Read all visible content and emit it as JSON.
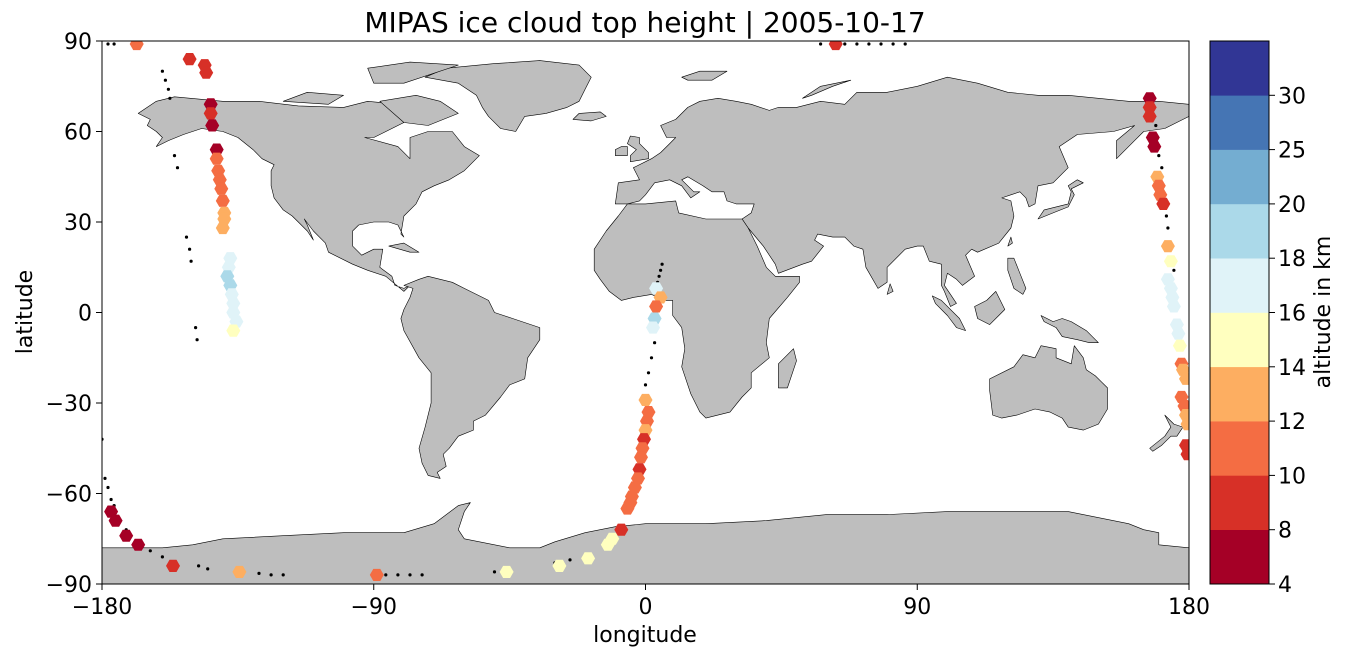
{
  "chart_data": {
    "type": "scatter",
    "title": "MIPAS ice cloud top height | 2005-10-17",
    "xlabel": "longitude",
    "ylabel": "latitude",
    "xlim": [
      -180,
      180
    ],
    "ylim": [
      -90,
      90
    ],
    "x_ticks": [
      -180,
      -90,
      0,
      90,
      180
    ],
    "y_ticks": [
      -90,
      -60,
      -30,
      0,
      30,
      60,
      90
    ],
    "x_tick_labels": [
      "−180",
      "−90",
      "0",
      "90",
      "180"
    ],
    "y_tick_labels": [
      "−90",
      "−60",
      "−30",
      "0",
      "30",
      "60",
      "90"
    ],
    "map_background": "world coastlines, land filled gray",
    "land_color": "#bebebe",
    "ocean_color": "#ffffff",
    "colorbar": {
      "label": "altitude in km",
      "levels": [
        4,
        8,
        10,
        12,
        14,
        16,
        18,
        20,
        25,
        30
      ],
      "level_labels": [
        "4",
        "8",
        "10",
        "12",
        "14",
        "16",
        "18",
        "20",
        "25",
        "30"
      ],
      "colors": [
        "#a50026",
        "#d73027",
        "#f46d43",
        "#fdae61",
        "#ffffbf",
        "#e0f3f8",
        "#abd9e9",
        "#74add1",
        "#4575b4",
        "#313695"
      ]
    },
    "track_points": [
      [
        -178,
        89
      ],
      [
        -176,
        89
      ],
      [
        -160,
        80
      ],
      [
        -159,
        77
      ],
      [
        -158,
        74
      ],
      [
        -157.5,
        71
      ],
      [
        -156,
        52
      ],
      [
        -155,
        48
      ],
      [
        -152,
        25
      ],
      [
        -151,
        21
      ],
      [
        -150.5,
        17
      ],
      [
        -149,
        -5
      ],
      [
        -148.5,
        -9
      ],
      [
        -180,
        -42
      ],
      [
        -179,
        -55
      ],
      [
        -178,
        -58
      ],
      [
        -177,
        -62
      ],
      [
        -176,
        -64
      ],
      [
        -172,
        -72
      ],
      [
        -168,
        -77
      ],
      [
        -164,
        -79
      ],
      [
        -160,
        -81
      ],
      [
        -157,
        -83
      ],
      [
        -148,
        -84
      ],
      [
        -145,
        -85
      ],
      [
        -133,
        -86
      ],
      [
        -128,
        -86.5
      ],
      [
        -124,
        -87
      ],
      [
        -120,
        -87
      ],
      [
        -90,
        -87
      ],
      [
        -86,
        -87
      ],
      [
        -82,
        -87
      ],
      [
        -78,
        -87
      ],
      [
        -74,
        -87
      ],
      [
        -50,
        -86
      ],
      [
        -45,
        -85
      ],
      [
        -30,
        -83
      ],
      [
        -25,
        -82
      ],
      [
        3.5,
        8
      ],
      [
        4,
        10
      ],
      [
        4.5,
        12
      ],
      [
        5,
        14
      ],
      [
        5.5,
        16
      ],
      [
        3,
        -10
      ],
      [
        2,
        -15
      ],
      [
        1,
        -20
      ],
      [
        0,
        -24
      ],
      [
        -2,
        -48
      ],
      [
        -3,
        -53
      ],
      [
        58,
        89
      ],
      [
        62,
        89
      ],
      [
        66,
        89
      ],
      [
        70,
        89
      ],
      [
        74,
        89
      ],
      [
        78,
        89
      ],
      [
        82,
        89
      ],
      [
        86,
        89
      ],
      [
        168,
        64
      ],
      [
        169,
        62
      ],
      [
        170,
        52
      ],
      [
        171,
        48
      ],
      [
        172,
        36
      ],
      [
        172.5,
        32
      ],
      [
        173,
        28
      ],
      [
        175,
        14
      ],
      [
        177,
        -5
      ],
      [
        177.5,
        -10
      ],
      [
        180,
        -45
      ],
      [
        179.5,
        -48
      ]
    ],
    "points": [
      {
        "lon": -168.5,
        "lat": 89,
        "alt": 11
      },
      {
        "lon": -151,
        "lat": 84,
        "alt": 9
      },
      {
        "lon": -146,
        "lat": 82,
        "alt": 9
      },
      {
        "lon": -145.5,
        "lat": 79.5,
        "alt": 9
      },
      {
        "lon": -144,
        "lat": 69,
        "alt": 7
      },
      {
        "lon": -144,
        "lat": 66,
        "alt": 9
      },
      {
        "lon": -143.5,
        "lat": 62,
        "alt": 7
      },
      {
        "lon": -142,
        "lat": 54,
        "alt": 7
      },
      {
        "lon": -142,
        "lat": 51,
        "alt": 11
      },
      {
        "lon": -141.5,
        "lat": 47,
        "alt": 11
      },
      {
        "lon": -141,
        "lat": 44,
        "alt": 11
      },
      {
        "lon": -140.5,
        "lat": 41,
        "alt": 11
      },
      {
        "lon": -140,
        "lat": 37,
        "alt": 11
      },
      {
        "lon": -139.5,
        "lat": 33,
        "alt": 13
      },
      {
        "lon": -139.5,
        "lat": 31,
        "alt": 13
      },
      {
        "lon": -140,
        "lat": 28,
        "alt": 13
      },
      {
        "lon": -137.5,
        "lat": 18,
        "alt": 17
      },
      {
        "lon": -138,
        "lat": 15,
        "alt": 17
      },
      {
        "lon": -138.5,
        "lat": 12,
        "alt": 19
      },
      {
        "lon": -137.5,
        "lat": 9,
        "alt": 19
      },
      {
        "lon": -137,
        "lat": 6,
        "alt": 17
      },
      {
        "lon": -136.5,
        "lat": 3,
        "alt": 17
      },
      {
        "lon": -136.5,
        "lat": 0,
        "alt": 17
      },
      {
        "lon": -135.5,
        "lat": -3,
        "alt": 17
      },
      {
        "lon": -136.5,
        "lat": -6,
        "alt": 15
      },
      {
        "lon": -177,
        "lat": -66,
        "alt": 7
      },
      {
        "lon": -175.5,
        "lat": -69,
        "alt": 7
      },
      {
        "lon": -172,
        "lat": -74,
        "alt": 7
      },
      {
        "lon": -168,
        "lat": -77,
        "alt": 7
      },
      {
        "lon": -156.5,
        "lat": -84,
        "alt": 9
      },
      {
        "lon": -134.5,
        "lat": -86,
        "alt": 13
      },
      {
        "lon": -89,
        "lat": -87,
        "alt": 11
      },
      {
        "lon": -46,
        "lat": -86,
        "alt": 15
      },
      {
        "lon": -28.5,
        "lat": -84,
        "alt": 15
      },
      {
        "lon": -19,
        "lat": -81.5,
        "alt": 15
      },
      {
        "lon": -12.5,
        "lat": -77,
        "alt": 15
      },
      {
        "lon": -11,
        "lat": -75,
        "alt": 15
      },
      {
        "lon": -8,
        "lat": -72,
        "alt": 9
      },
      {
        "lon": 3.5,
        "lat": 8,
        "alt": 17
      },
      {
        "lon": 5,
        "lat": 5,
        "alt": 13
      },
      {
        "lon": 3.5,
        "lat": 2,
        "alt": 11
      },
      {
        "lon": 3,
        "lat": -2,
        "alt": 19
      },
      {
        "lon": 2.5,
        "lat": -5,
        "alt": 17
      },
      {
        "lon": 0,
        "lat": -29,
        "alt": 13
      },
      {
        "lon": 1,
        "lat": -33,
        "alt": 11
      },
      {
        "lon": 0.5,
        "lat": -36,
        "alt": 11
      },
      {
        "lon": 0,
        "lat": -39,
        "alt": 13
      },
      {
        "lon": -0.5,
        "lat": -42,
        "alt": 9
      },
      {
        "lon": -1,
        "lat": -45,
        "alt": 11
      },
      {
        "lon": -1.5,
        "lat": -48,
        "alt": 11
      },
      {
        "lon": -2,
        "lat": -52,
        "alt": 9
      },
      {
        "lon": -2.5,
        "lat": -55,
        "alt": 11
      },
      {
        "lon": -3.5,
        "lat": -58,
        "alt": 11
      },
      {
        "lon": -4.5,
        "lat": -61,
        "alt": 11
      },
      {
        "lon": -5,
        "lat": -63,
        "alt": 11
      },
      {
        "lon": -6,
        "lat": -65,
        "alt": 11
      },
      {
        "lon": 63,
        "lat": 89,
        "alt": 9
      },
      {
        "lon": 167,
        "lat": 71,
        "alt": 7
      },
      {
        "lon": 167,
        "lat": 68,
        "alt": 9
      },
      {
        "lon": 167,
        "lat": 65,
        "alt": 9
      },
      {
        "lon": 168,
        "lat": 58,
        "alt": 7
      },
      {
        "lon": 168.5,
        "lat": 55,
        "alt": 7
      },
      {
        "lon": 169.5,
        "lat": 45,
        "alt": 13
      },
      {
        "lon": 170,
        "lat": 42,
        "alt": 11
      },
      {
        "lon": 170.5,
        "lat": 39,
        "alt": 11
      },
      {
        "lon": 171.5,
        "lat": 36,
        "alt": 9
      },
      {
        "lon": 173,
        "lat": 22,
        "alt": 13
      },
      {
        "lon": 174,
        "lat": 17,
        "alt": 15
      },
      {
        "lon": 173,
        "lat": 11,
        "alt": 17
      },
      {
        "lon": 174,
        "lat": 8,
        "alt": 17
      },
      {
        "lon": 174.5,
        "lat": 5,
        "alt": 17
      },
      {
        "lon": 175,
        "lat": 2,
        "alt": 17
      },
      {
        "lon": 176,
        "lat": -4,
        "alt": 17
      },
      {
        "lon": 176.5,
        "lat": -7,
        "alt": 17
      },
      {
        "lon": 177,
        "lat": -11,
        "alt": 15
      },
      {
        "lon": 177.5,
        "lat": -17,
        "alt": 11
      },
      {
        "lon": 178,
        "lat": -19,
        "alt": 13
      },
      {
        "lon": 179,
        "lat": -22,
        "alt": 13
      },
      {
        "lon": 177.5,
        "lat": -28,
        "alt": 11
      },
      {
        "lon": 178.5,
        "lat": -31,
        "alt": 11
      },
      {
        "lon": 179,
        "lat": -34,
        "alt": 13
      },
      {
        "lon": 179.5,
        "lat": -37,
        "alt": 13
      },
      {
        "lon": 179,
        "lat": -44,
        "alt": 9
      },
      {
        "lon": 179.5,
        "lat": -47,
        "alt": 9
      }
    ]
  }
}
